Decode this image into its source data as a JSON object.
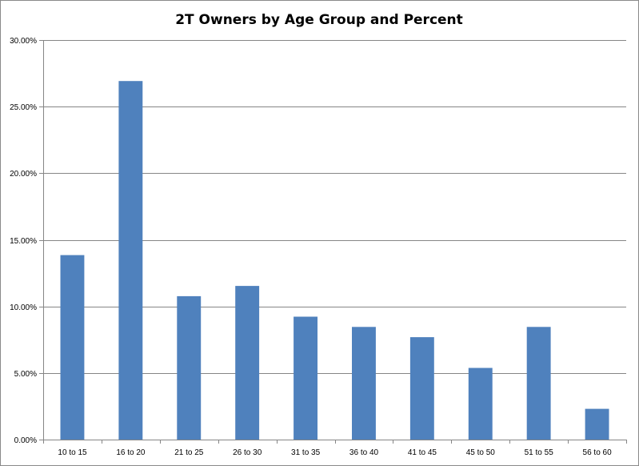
{
  "chart_data": {
    "type": "bar",
    "title": "2T Owners by Age Group and Percent",
    "xlabel": "",
    "ylabel": "",
    "categories": [
      "10 to 15",
      "16 to 20",
      "21 to 25",
      "26 to 30",
      "31 to 35",
      "36 to 40",
      "41 to 45",
      "45 to 50",
      "51 to 55",
      "56 to 60"
    ],
    "values": [
      13.85,
      26.92,
      10.77,
      11.54,
      9.23,
      8.46,
      7.69,
      5.38,
      8.46,
      2.31
    ],
    "ylim": [
      0,
      30
    ],
    "y_ticks": [
      "0.00%",
      "5.00%",
      "10.00%",
      "15.00%",
      "20.00%",
      "25.00%",
      "30.00%"
    ],
    "grid": true,
    "legend": "none",
    "bar_color": "#4f81bd",
    "grid_color": "#868686"
  }
}
